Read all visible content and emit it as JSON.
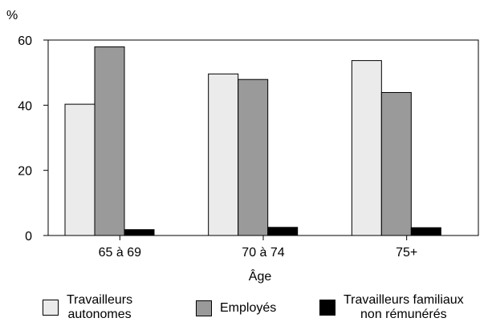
{
  "chart_data": {
    "type": "bar",
    "title": "",
    "y_unit": "%",
    "xlabel": "Âge",
    "ylabel": "",
    "categories": [
      "65 à 69",
      "70 à 74",
      "75+"
    ],
    "series": [
      {
        "name": "Travailleurs autonomes",
        "label_lines": [
          "Travailleurs",
          "autonomes"
        ],
        "color": "#ebebeb",
        "values": [
          40.3,
          49.6,
          53.7
        ]
      },
      {
        "name": "Employés",
        "label_lines": [
          "Employés"
        ],
        "color": "#9a9a9a",
        "values": [
          57.9,
          47.9,
          43.9
        ]
      },
      {
        "name": "Travailleurs familiaux non rémunérés",
        "label_lines": [
          "Travailleurs familiaux",
          "non rémunérés"
        ],
        "color": "#000000",
        "values": [
          1.8,
          2.5,
          2.4
        ]
      }
    ],
    "ylim": [
      0,
      60
    ],
    "yticks": [
      0,
      20,
      40,
      60
    ],
    "grid": false,
    "legend_position": "bottom"
  }
}
